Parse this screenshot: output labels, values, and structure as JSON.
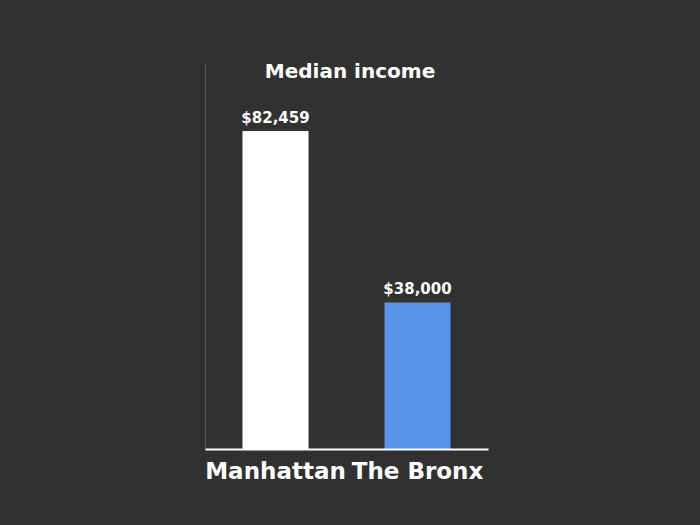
{
  "chart_data": {
    "type": "bar",
    "title": "Median income",
    "categories": [
      "Manhattan",
      "The Bronx"
    ],
    "values": [
      82459,
      38000
    ],
    "value_labels": [
      "$82,459",
      "$38,000"
    ],
    "colors": [
      "#ffffff",
      "#5993ea"
    ],
    "ylim": [
      0,
      100000
    ],
    "data_labels": true,
    "tick_labels": "x",
    "grid": false
  }
}
